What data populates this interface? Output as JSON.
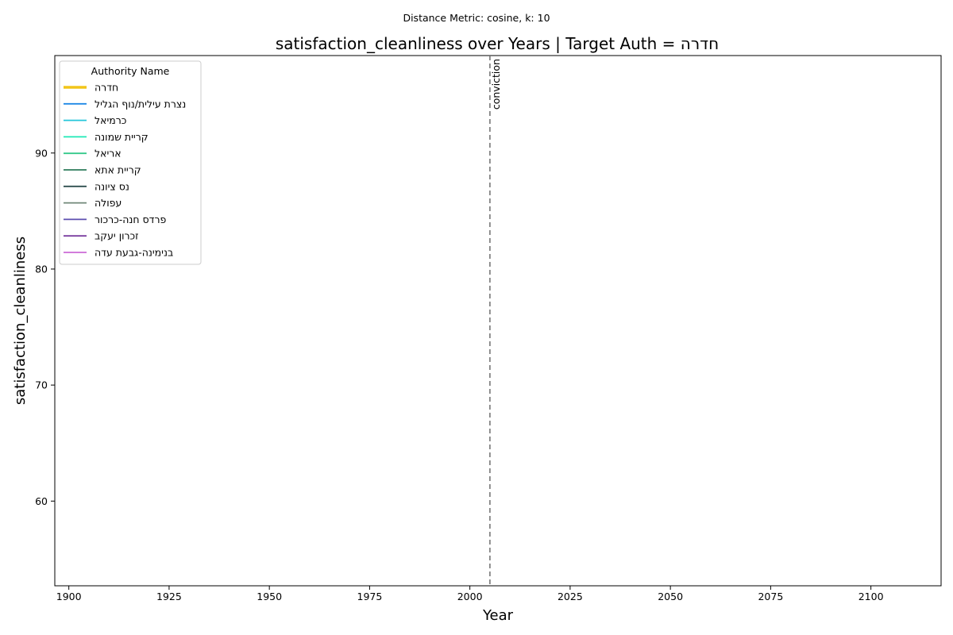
{
  "chart_data": {
    "type": "line",
    "subtitle": "Distance Metric: cosine, k: 10",
    "title": "satisfaction_cleanliness over Years | Target Auth = חדרה",
    "xlabel": "Year",
    "ylabel": "satisfaction_cleanliness",
    "xlim": [
      1896.5,
      2117.5
    ],
    "ylim": [
      52.7,
      98.4
    ],
    "x_ticks": [
      1900,
      1925,
      1950,
      1975,
      2000,
      2025,
      2050,
      2075,
      2100
    ],
    "y_ticks": [
      60,
      70,
      80,
      90
    ],
    "grid": false,
    "legend": {
      "title": "Authority Name",
      "placement": "top-left",
      "entries": [
        {
          "name": "חדרה",
          "color": "#f2c519",
          "target": true
        },
        {
          "name": "נצרת עילית/נוף הגליל",
          "color": "#1e88e5",
          "target": false
        },
        {
          "name": "כרמיאל",
          "color": "#26c6da",
          "target": false
        },
        {
          "name": "קריית שמונה",
          "color": "#1de9b6",
          "target": false
        },
        {
          "name": "אריאל",
          "color": "#34c98a",
          "target": false
        },
        {
          "name": "קריית אתא",
          "color": "#2e7d5b",
          "target": false
        },
        {
          "name": "נס ציונה",
          "color": "#2f4f4f",
          "target": false
        },
        {
          "name": "עפולה",
          "color": "#708878",
          "target": false
        },
        {
          "name": "פרדס חנה-כרכור",
          "color": "#5c4fb0",
          "target": false
        },
        {
          "name": "זכרון יעקב",
          "color": "#7b3fa0",
          "target": false
        },
        {
          "name": "בנימינה-גבעת עדה",
          "color": "#cc6ad6",
          "target": false
        }
      ]
    },
    "series": [
      {
        "name": "חדרה",
        "values": []
      },
      {
        "name": "נצרת עילית/נוף הגליל",
        "values": []
      },
      {
        "name": "כרמיאל",
        "values": []
      },
      {
        "name": "קריית שמונה",
        "values": []
      },
      {
        "name": "אריאל",
        "values": []
      },
      {
        "name": "קריית אתא",
        "values": []
      },
      {
        "name": "נס ציונה",
        "values": []
      },
      {
        "name": "עפולה",
        "values": []
      },
      {
        "name": "פרדס חנה-כרכור",
        "values": []
      },
      {
        "name": "זכרון יעקב",
        "values": []
      },
      {
        "name": "בנימינה-גבעת עדה",
        "values": []
      }
    ],
    "vline": {
      "x": 2005,
      "label": "conviction",
      "color": "#6e6e6e",
      "style": "dashed"
    }
  }
}
